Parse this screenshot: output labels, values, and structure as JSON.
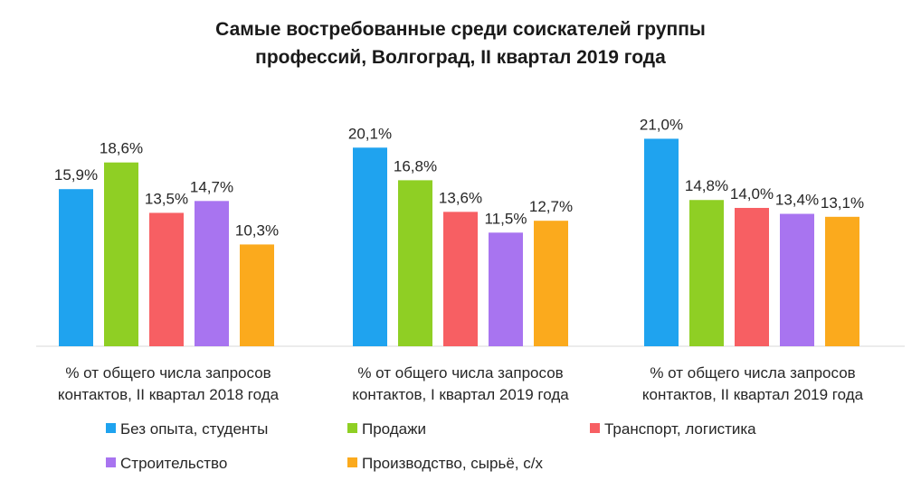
{
  "chart_data": {
    "type": "bar",
    "title_lines": [
      "Самые востребованные среди соискателей группы",
      "профессий, Волгоград, II квартал 2019 года"
    ],
    "categories": [
      [
        "% от общего числа запросов",
        "контактов, II квартал 2018 года"
      ],
      [
        "% от общего числа запросов",
        "контактов, I квартал 2019 года"
      ],
      [
        "% от общего числа запросов",
        "контактов, II квартал 2019 года"
      ]
    ],
    "series": [
      {
        "name": "Без опыта, студенты",
        "color": "#1fa3ef",
        "values": [
          15.9,
          20.1,
          21.0
        ],
        "labels": [
          "15,9%",
          "20,1%",
          "21,0%"
        ]
      },
      {
        "name": "Продажи",
        "color": "#8fcf24",
        "values": [
          18.6,
          16.8,
          14.8
        ],
        "labels": [
          "18,6%",
          "16,8%",
          "14,8%"
        ]
      },
      {
        "name": "Транспорт, логистика",
        "color": "#f75f63",
        "values": [
          13.5,
          13.6,
          14.0
        ],
        "labels": [
          "13,5%",
          "13,6%",
          "14,0%"
        ]
      },
      {
        "name": "Строительство",
        "color": "#a874f0",
        "values": [
          14.7,
          11.5,
          13.4
        ],
        "labels": [
          "14,7%",
          "11,5%",
          "13,4%"
        ]
      },
      {
        "name": "Производство, сырьё, с/х",
        "color": "#fbaa1d",
        "values": [
          10.3,
          12.7,
          13.1
        ],
        "labels": [
          "10,3%",
          "12,7%",
          "13,1%"
        ]
      }
    ],
    "ylim": [
      0,
      21.5
    ],
    "grid": false,
    "legend_position": "bottom"
  }
}
